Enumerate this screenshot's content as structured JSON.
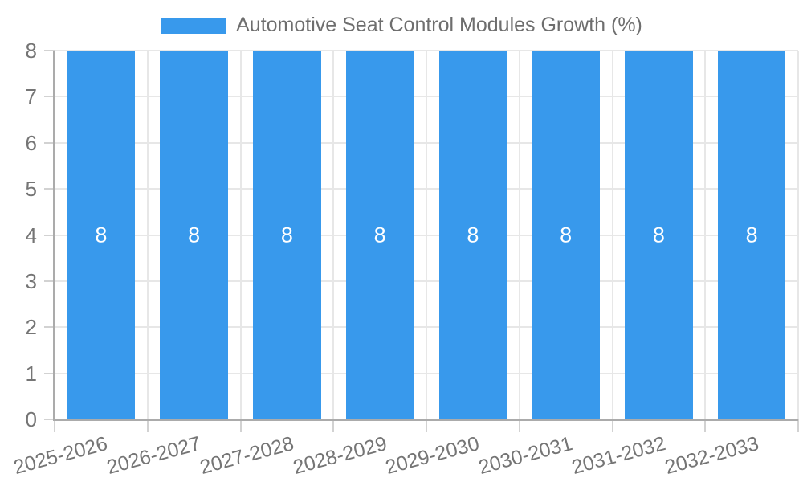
{
  "chart_data": {
    "type": "bar",
    "title": "Automotive Seat Control Modules Growth (%)",
    "categories": [
      "2025-2026",
      "2026-2027",
      "2027-2028",
      "2028-2029",
      "2029-2030",
      "2030-2031",
      "2031-2032",
      "2032-2033"
    ],
    "values": [
      8,
      8,
      8,
      8,
      8,
      8,
      8,
      8
    ],
    "bar_labels": [
      "8",
      "8",
      "8",
      "8",
      "8",
      "8",
      "8",
      "8"
    ],
    "xlabel": "",
    "ylabel": "",
    "ylim": [
      0,
      8
    ],
    "yticks": [
      0,
      1,
      2,
      3,
      4,
      5,
      6,
      7,
      8
    ],
    "grid": true,
    "legend": {
      "position": "top",
      "label": "Automotive Seat Control Modules Growth (%)"
    },
    "colors": {
      "bar": "#3899ec",
      "bar_value_text": "#ffffff",
      "grid": "#e7e7e7",
      "tick": "#d2d2d2",
      "axis": "#ababab",
      "axis_text": "#757575",
      "legend_text": "#6e6e6e",
      "background": "#ffffff"
    }
  }
}
